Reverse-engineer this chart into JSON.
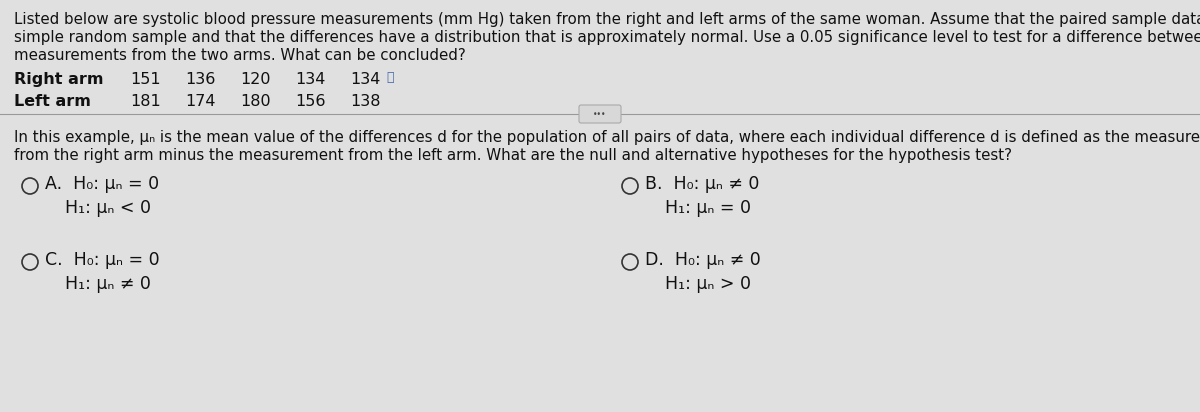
{
  "panel_color": "#e0e0e0",
  "top_paragraph_line1": "Listed below are systolic blood pressure measurements (mm Hg) taken from the right and left arms of the same woman. Assume that the paired sample data is a",
  "top_paragraph_line2": "simple random sample and that the differences have a distribution that is approximately normal. Use a 0.05 significance level to test for a difference between the",
  "top_paragraph_line3": "measurements from the two arms. What can be concluded?",
  "right_arm_label": "Right arm",
  "left_arm_label": "Left arm",
  "right_arm_values": [
    "151",
    "136",
    "120",
    "134",
    "134"
  ],
  "left_arm_values": [
    "181",
    "174",
    "180",
    "156",
    "138"
  ],
  "mid_paragraph_line1": "In this example, μₙ is the mean value of the differences d for the population of all pairs of data, where each individual difference d is defined as the measurement",
  "mid_paragraph_line2": "from the right arm minus the measurement from the left arm. What are the null and alternative hypotheses for the hypothesis test?",
  "option_A_H0": "H₀: μₙ = 0",
  "option_A_H1": "H₁: μₙ < 0",
  "option_B_H0": "H₀: μₙ ≠ 0",
  "option_B_H1": "H₁: μₙ = 0",
  "option_C_H0": "H₀: μₙ = 0",
  "option_C_H1": "H₁: μₙ ≠ 0",
  "option_D_H0": "H₀: μₙ ≠ 0",
  "option_D_H1": "H₁: μₙ > 0",
  "text_color": "#111111",
  "circle_color": "#333333",
  "separator_color": "#999999",
  "fs_para": 10.8,
  "fs_data": 11.5,
  "fs_option": 12.5,
  "fs_label": 12.5
}
